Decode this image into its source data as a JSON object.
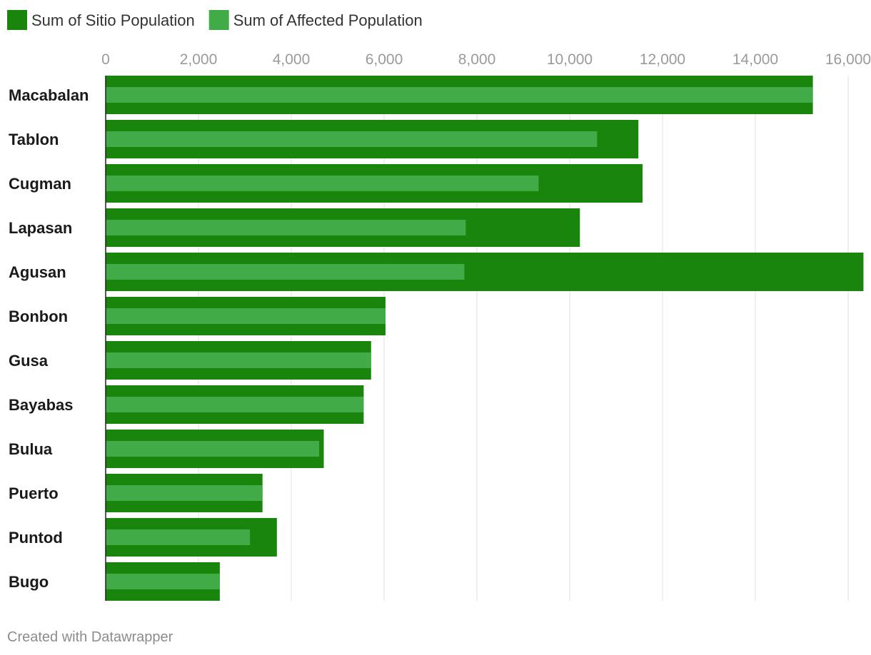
{
  "chart_data": {
    "type": "bar",
    "orientation": "horizontal",
    "categories": [
      "Macabalan",
      "Tablon",
      "Cugman",
      "Lapasan",
      "Agusan",
      "Bonbon",
      "Gusa",
      "Bayabas",
      "Bulua",
      "Puerto",
      "Puntod",
      "Bugo"
    ],
    "series": [
      {
        "name": "Sum of Sitio Population",
        "color": "#1a850c",
        "values": [
          15240,
          11480,
          11570,
          10220,
          16330,
          6030,
          5720,
          5560,
          4700,
          3380,
          3690,
          2460
        ]
      },
      {
        "name": "Sum of Affected Population",
        "color": "#41ab47",
        "values": [
          15240,
          10590,
          9330,
          7760,
          7730,
          6030,
          5720,
          5560,
          4600,
          3380,
          3110,
          2460
        ]
      }
    ],
    "x_ticks": [
      "0",
      "2,000",
      "4,000",
      "6,000",
      "8,000",
      "10,000",
      "12,000",
      "14,000",
      "16,000"
    ],
    "xlim": [
      0,
      16300
    ],
    "grid": true,
    "legend_position": "top-left",
    "gridline_color": "#e1e1e1"
  },
  "footer": {
    "credit": "Created with Datawrapper"
  }
}
